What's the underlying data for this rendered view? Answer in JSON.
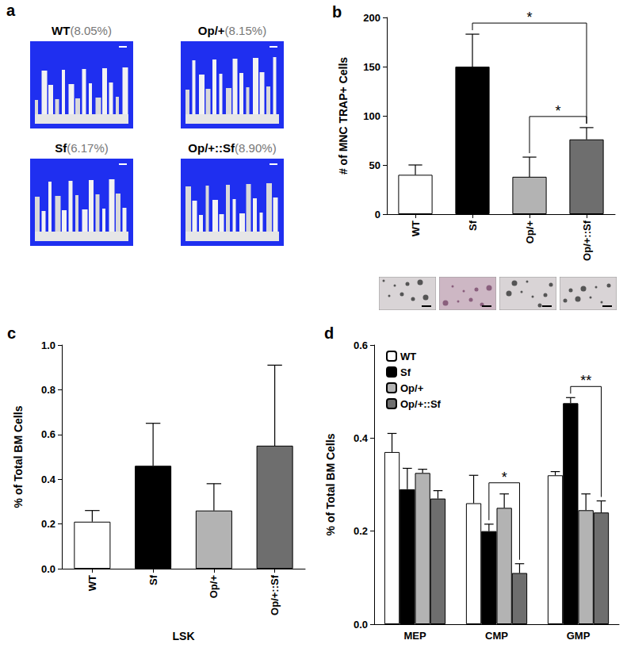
{
  "image_panel": {
    "title": "a",
    "images": [
      {
        "label": "WT",
        "caption": "(8.05%)"
      },
      {
        "label": "Op/+",
        "caption": "(8.15%)"
      },
      {
        "label": "Sf",
        "caption": "(6.17%)"
      },
      {
        "label": "Op/+::Sf",
        "caption": "(8.90%)"
      }
    ]
  },
  "chart_data": [
    {
      "type": "bar",
      "title": "b",
      "categories": [
        "WT",
        "Sf",
        "Op/+",
        "Op/+::Sf"
      ],
      "values": [
        40,
        150,
        38,
        76
      ],
      "errors": [
        10,
        33,
        20,
        12
      ],
      "colors": [
        "#ffffff",
        "#000000",
        "#b3b3b3",
        "#6e6e6e"
      ],
      "ylabel": "# of MNC TRAP+ Cells",
      "ylim": [
        0,
        200
      ],
      "yticks": [
        0,
        50,
        100,
        150,
        200
      ],
      "grid": false,
      "annotations": [
        {
          "from": "Sf",
          "to": "Op/+::Sf",
          "text": "*"
        },
        {
          "from": "Op/+",
          "to": "Op/+::Sf",
          "text": "*"
        }
      ]
    },
    {
      "type": "bar",
      "title": "c",
      "categories": [
        "WT",
        "Sf",
        "Op/+",
        "Op/+::Sf"
      ],
      "values": [
        0.21,
        0.46,
        0.26,
        0.55
      ],
      "errors": [
        0.05,
        0.19,
        0.12,
        0.36
      ],
      "colors": [
        "#ffffff",
        "#000000",
        "#b3b3b3",
        "#6e6e6e"
      ],
      "xlabel": "LSK",
      "ylabel": "% of Total BM Cells",
      "ylim": [
        0,
        1.0
      ],
      "yticks": [
        {
          "value": 0,
          "label": "0.0"
        },
        0.2,
        0.4,
        0.6,
        0.8,
        {
          "value": 1.0,
          "label": "1.0"
        }
      ],
      "grid": false
    },
    {
      "type": "bar",
      "title": "d",
      "categories": [
        "MEP",
        "CMP",
        "GMP"
      ],
      "series": [
        {
          "name": "WT",
          "color": "#ffffff",
          "values": [
            0.37,
            0.26,
            0.32
          ],
          "errors": [
            0.04,
            0.06,
            0.008
          ]
        },
        {
          "name": "Sf",
          "color": "#000000",
          "values": [
            0.29,
            0.2,
            0.475
          ],
          "errors": [
            0.045,
            0.015,
            0.012
          ]
        },
        {
          "name": "Op/+",
          "color": "#b3b3b3",
          "values": [
            0.325,
            0.25,
            0.245
          ],
          "errors": [
            0.008,
            0.03,
            0.035
          ]
        },
        {
          "name": "Op/+::Sf",
          "color": "#6e6e6e",
          "values": [
            0.27,
            0.11,
            0.24
          ],
          "errors": [
            0.017,
            0.02,
            0.025
          ]
        }
      ],
      "ylabel": "% of Total BM Cells",
      "ylim": [
        0,
        0.6
      ],
      "yticks": [
        {
          "value": 0,
          "label": "0.0"
        },
        0.2,
        0.4,
        0.6
      ],
      "grid": false,
      "legend": "upper left",
      "annotations": [
        {
          "category": "CMP",
          "from": "Sf",
          "to": "Op/+::Sf",
          "text": "*"
        },
        {
          "category": "GMP",
          "from": "Sf",
          "to": "Op/+::Sf",
          "text": "**"
        }
      ]
    }
  ]
}
